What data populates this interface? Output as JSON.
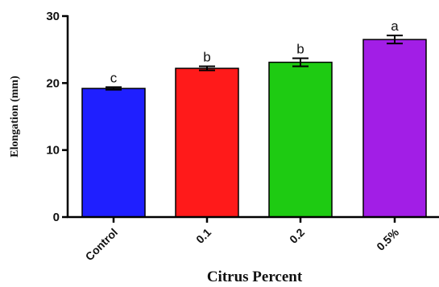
{
  "chart_data": {
    "type": "bar",
    "title": "",
    "xlabel": "Citrus Percent",
    "ylabel": "Elongation (mm)",
    "categories": [
      "Control",
      "0.1",
      "0.2",
      "0.5%"
    ],
    "values": [
      19.2,
      22.2,
      23.1,
      26.5
    ],
    "errors": [
      0.2,
      0.3,
      0.6,
      0.6
    ],
    "significance_letters": [
      "c",
      "b",
      "b",
      "a"
    ],
    "colors": [
      "#1f1fff",
      "#ff1a1a",
      "#1ecb12",
      "#a21ee6"
    ],
    "ylim": [
      0,
      30
    ],
    "yticks": [
      0,
      10,
      20,
      30
    ],
    "grid": false,
    "legend": "none"
  }
}
